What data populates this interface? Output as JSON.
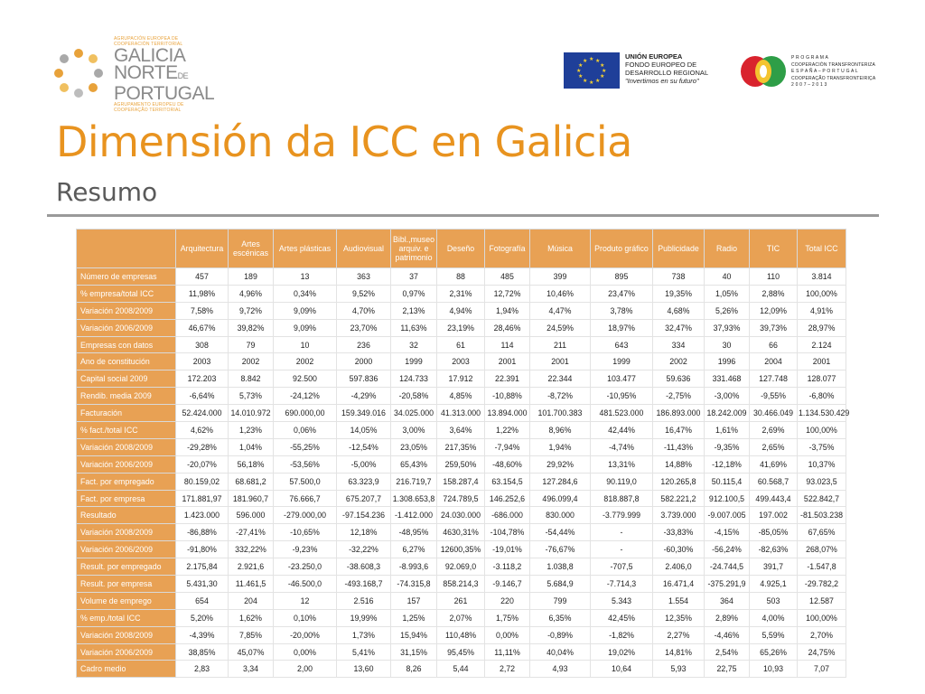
{
  "header": {
    "galicia_logo": {
      "top_small": [
        "AGRUPACIÓN EUROPEA DE",
        "COOPERACIÓN TERRITORIAL"
      ],
      "big": [
        "GALICIA",
        "NORTE",
        "PORTUGAL"
      ],
      "de": "DE",
      "bottom_small": [
        "AGRUPAMENTO EUROPEU DE",
        "COOPERAÇÃO TERRITORIAL"
      ]
    },
    "eu_logo": {
      "line1": "UNIÓN EUROPEA",
      "line2": "FONDO EUROPEO DE",
      "line3": "DESARROLLO REGIONAL",
      "line4": "\"Invertimos en su futuro\""
    },
    "poctep_logo": {
      "line1": "P R O G R A M A",
      "line2": "COOPERACIÓN TRANSFRONTERIZA",
      "line3": "E S P A Ñ A – P O R T U G A L",
      "line4": "COOPERAÇÃO TRANSFRONTEIRIÇA",
      "line5": "2 0 0 7 – 2 0 1 3"
    }
  },
  "title": "Dimensión da ICC en Galicia",
  "subtitle": "Resumo",
  "colors": {
    "accent": "#e8931f",
    "table_header": "#e8a154",
    "rule": "#9a9a9a"
  },
  "table": {
    "columns": [
      "Arquitectura",
      "Artes escénicas",
      "Artes plásticas",
      "Audiovisual",
      "Bibl.,museo arquiv. e patrimonio",
      "Deseño",
      "Fotografía",
      "Música",
      "Produto gráfico",
      "Publicidade",
      "Radio",
      "TIC",
      "Total ICC"
    ],
    "rows": [
      {
        "label": "Número de empresas",
        "values": [
          "457",
          "189",
          "13",
          "363",
          "37",
          "88",
          "485",
          "399",
          "895",
          "738",
          "40",
          "110",
          "3.814"
        ]
      },
      {
        "label": "% empresa/total ICC",
        "values": [
          "11,98%",
          "4,96%",
          "0,34%",
          "9,52%",
          "0,97%",
          "2,31%",
          "12,72%",
          "10,46%",
          "23,47%",
          "19,35%",
          "1,05%",
          "2,88%",
          "100,00%"
        ]
      },
      {
        "label": "Variación 2008/2009",
        "values": [
          "7,58%",
          "9,72%",
          "9,09%",
          "4,70%",
          "2,13%",
          "4,94%",
          "1,94%",
          "4,47%",
          "3,78%",
          "4,68%",
          "5,26%",
          "12,09%",
          "4,91%"
        ]
      },
      {
        "label": "Variación 2006/2009",
        "values": [
          "46,67%",
          "39,82%",
          "9,09%",
          "23,70%",
          "11,63%",
          "23,19%",
          "28,46%",
          "24,59%",
          "18,97%",
          "32,47%",
          "37,93%",
          "39,73%",
          "28,97%"
        ]
      },
      {
        "label": "Empresas con datos",
        "values": [
          "308",
          "79",
          "10",
          "236",
          "32",
          "61",
          "114",
          "211",
          "643",
          "334",
          "30",
          "66",
          "2.124"
        ]
      },
      {
        "label": "Ano de constitución",
        "values": [
          "2003",
          "2002",
          "2002",
          "2000",
          "1999",
          "2003",
          "2001",
          "2001",
          "1999",
          "2002",
          "1996",
          "2004",
          "2001"
        ]
      },
      {
        "label": "Capital social 2009",
        "values": [
          "172.203",
          "8.842",
          "92.500",
          "597.836",
          "124.733",
          "17.912",
          "22.391",
          "22.344",
          "103.477",
          "59.636",
          "331.468",
          "127.748",
          "128.077"
        ]
      },
      {
        "label": "Rendib. media 2009",
        "values": [
          "-6,64%",
          "5,73%",
          "-24,12%",
          "-4,29%",
          "-20,58%",
          "4,85%",
          "-10,88%",
          "-8,72%",
          "-10,95%",
          "-2,75%",
          "-3,00%",
          "-9,55%",
          "-6,80%"
        ]
      },
      {
        "label": "Facturación",
        "values": [
          "52.424.000",
          "14.010.972",
          "690.000,00",
          "159.349.016",
          "34.025.000",
          "41.313.000",
          "13.894.000",
          "101.700.383",
          "481.523.000",
          "186.893.000",
          "18.242.009",
          "30.466.049",
          "1.134.530.429"
        ]
      },
      {
        "label": "% fact./total ICC",
        "values": [
          "4,62%",
          "1,23%",
          "0,06%",
          "14,05%",
          "3,00%",
          "3,64%",
          "1,22%",
          "8,96%",
          "42,44%",
          "16,47%",
          "1,61%",
          "2,69%",
          "100,00%"
        ]
      },
      {
        "label": "Variación 2008/2009",
        "values": [
          "-29,28%",
          "1,04%",
          "-55,25%",
          "-12,54%",
          "23,05%",
          "217,35%",
          "-7,94%",
          "1,94%",
          "-4,74%",
          "-11,43%",
          "-9,35%",
          "2,65%",
          "-3,75%"
        ]
      },
      {
        "label": "Variación 2006/2009",
        "values": [
          "-20,07%",
          "56,18%",
          "-53,56%",
          "-5,00%",
          "65,43%",
          "259,50%",
          "-48,60%",
          "29,92%",
          "13,31%",
          "14,88%",
          "-12,18%",
          "41,69%",
          "10,37%"
        ]
      },
      {
        "label": "Fact. por empregado",
        "values": [
          "80.159,02",
          "68.681,2",
          "57.500,0",
          "63.323,9",
          "216.719,7",
          "158.287,4",
          "63.154,5",
          "127.284,6",
          "90.119,0",
          "120.265,8",
          "50.115,4",
          "60.568,7",
          "93.023,5"
        ]
      },
      {
        "label": "Fact. por empresa",
        "values": [
          "171.881,97",
          "181.960,7",
          "76.666,7",
          "675.207,7",
          "1.308.653,8",
          "724.789,5",
          "146.252,6",
          "496.099,4",
          "818.887,8",
          "582.221,2",
          "912.100,5",
          "499.443,4",
          "522.842,7"
        ]
      },
      {
        "label": "Resultado",
        "values": [
          "1.423.000",
          "596.000",
          "-279.000,00",
          "-97.154.236",
          "-1.412.000",
          "24.030.000",
          "-686.000",
          "830.000",
          "-3.779.999",
          "3.739.000",
          "-9.007.005",
          "197.002",
          "-81.503.238"
        ]
      },
      {
        "label": "Variación 2008/2009",
        "values": [
          "-86,88%",
          "-27,41%",
          "-10,65%",
          "12,18%",
          "-48,95%",
          "4630,31%",
          "-104,78%",
          "-54,44%",
          "-",
          "-33,83%",
          "-4,15%",
          "-85,05%",
          "67,65%"
        ]
      },
      {
        "label": "Variación 2006/2009",
        "values": [
          "-91,80%",
          "332,22%",
          "-9,23%",
          "-32,22%",
          "6,27%",
          "12600,35%",
          "-19,01%",
          "-76,67%",
          "-",
          "-60,30%",
          "-56,24%",
          "-82,63%",
          "268,07%"
        ]
      },
      {
        "label": "Result. por empregado",
        "values": [
          "2.175,84",
          "2.921,6",
          "-23.250,0",
          "-38.608,3",
          "-8.993,6",
          "92.069,0",
          "-3.118,2",
          "1.038,8",
          "-707,5",
          "2.406,0",
          "-24.744,5",
          "391,7",
          "-1.547,8"
        ]
      },
      {
        "label": "Result. por empresa",
        "values": [
          "5.431,30",
          "11.461,5",
          "-46.500,0",
          "-493.168,7",
          "-74.315,8",
          "858.214,3",
          "-9.146,7",
          "5.684,9",
          "-7.714,3",
          "16.471,4",
          "-375.291,9",
          "4.925,1",
          "-29.782,2"
        ]
      },
      {
        "label": "Volume de emprego",
        "values": [
          "654",
          "204",
          "12",
          "2.516",
          "157",
          "261",
          "220",
          "799",
          "5.343",
          "1.554",
          "364",
          "503",
          "12.587"
        ]
      },
      {
        "label": "% emp./total ICC",
        "values": [
          "5,20%",
          "1,62%",
          "0,10%",
          "19,99%",
          "1,25%",
          "2,07%",
          "1,75%",
          "6,35%",
          "42,45%",
          "12,35%",
          "2,89%",
          "4,00%",
          "100,00%"
        ]
      },
      {
        "label": "Variación 2008/2009",
        "values": [
          "-4,39%",
          "7,85%",
          "-20,00%",
          "1,73%",
          "15,94%",
          "110,48%",
          "0,00%",
          "-0,89%",
          "-1,82%",
          "2,27%",
          "-4,46%",
          "5,59%",
          "2,70%"
        ]
      },
      {
        "label": "Variación 2006/2009",
        "values": [
          "38,85%",
          "45,07%",
          "0,00%",
          "5,41%",
          "31,15%",
          "95,45%",
          "11,11%",
          "40,04%",
          "19,02%",
          "14,81%",
          "2,54%",
          "65,26%",
          "24,75%"
        ]
      },
      {
        "label": "Cadro medio",
        "values": [
          "2,83",
          "3,34",
          "2,00",
          "13,60",
          "8,26",
          "5,44",
          "2,72",
          "4,93",
          "10,64",
          "5,93",
          "22,75",
          "10,93",
          "7,07"
        ]
      }
    ]
  }
}
